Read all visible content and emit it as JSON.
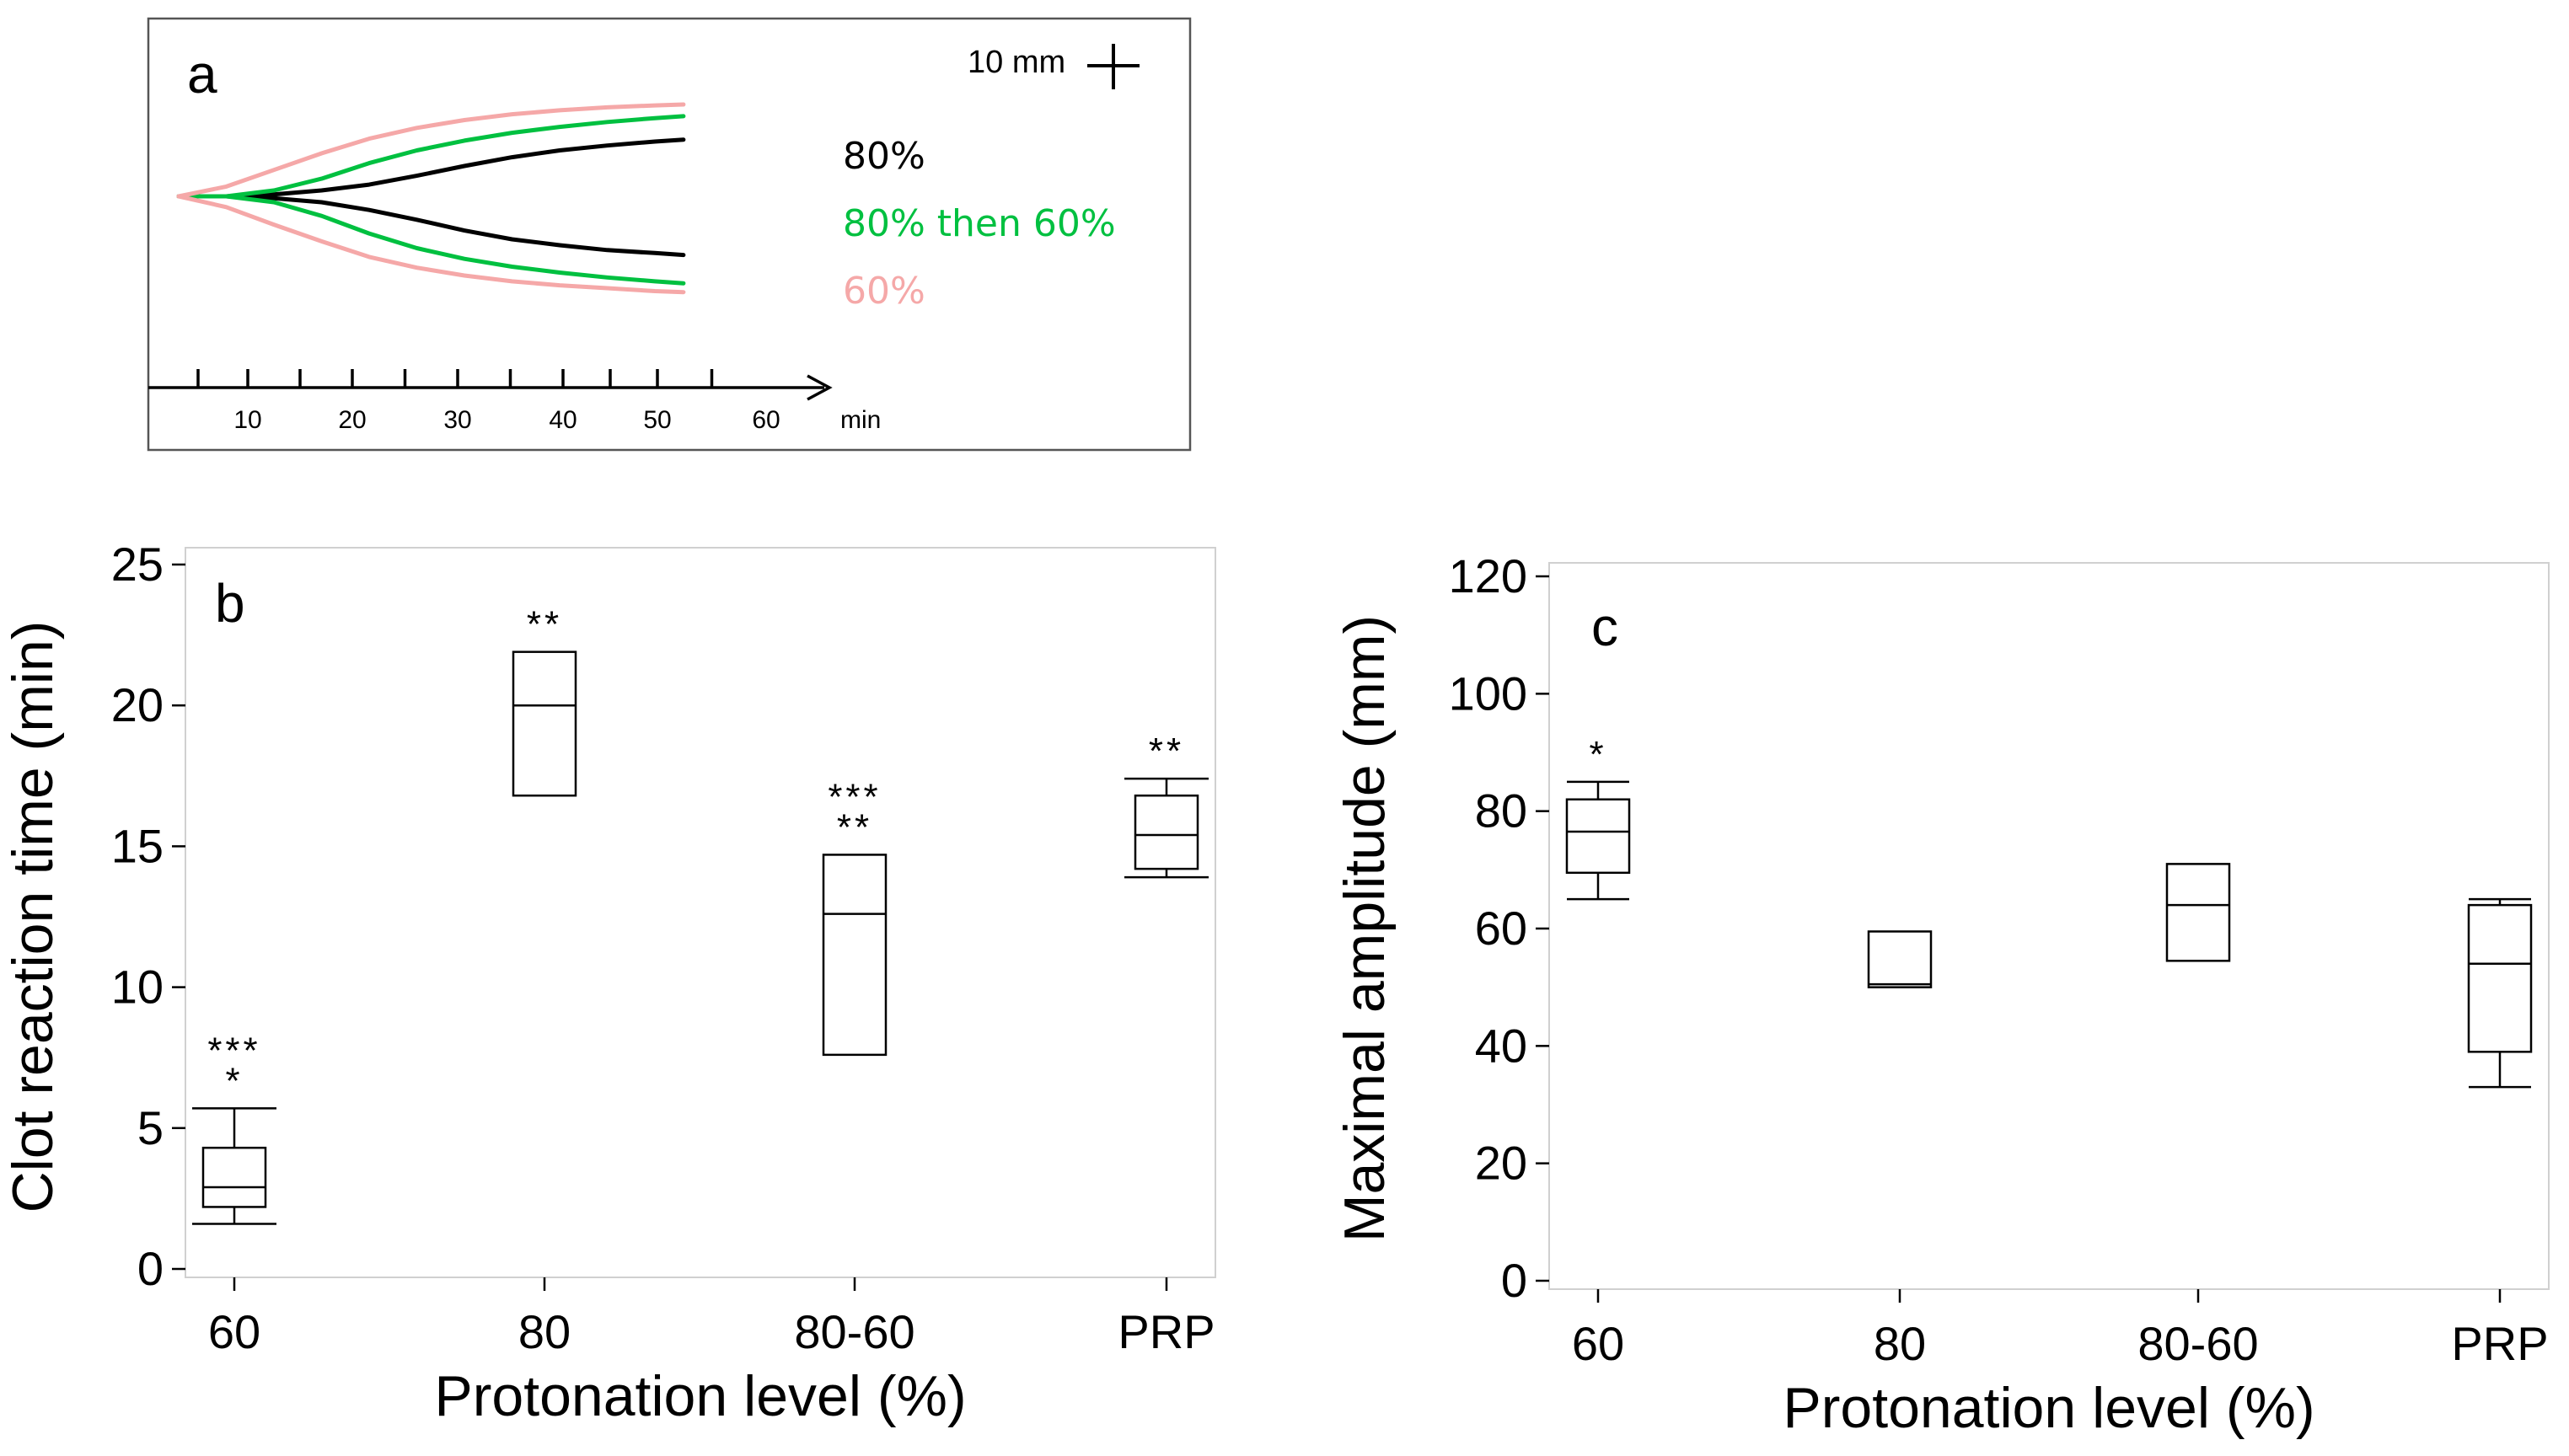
{
  "chart_data": [
    {
      "panel": "a",
      "type": "line",
      "title": "",
      "xlabel": "min",
      "x_ticks": [
        10,
        20,
        30,
        40,
        50,
        60
      ],
      "xlim": [
        0,
        65
      ],
      "scale_label": "10 mm",
      "series": [
        {
          "name": "80%",
          "color": "#000000",
          "x": [
            0,
            5,
            10,
            15,
            20,
            25,
            30,
            35,
            40,
            45,
            50,
            53
          ],
          "upper": [
            0,
            0,
            0.2,
            0.6,
            1.2,
            2.1,
            3.1,
            4.0,
            4.7,
            5.2,
            5.6,
            5.8
          ],
          "lower": [
            0,
            0,
            -0.2,
            -0.6,
            -1.4,
            -2.4,
            -3.5,
            -4.4,
            -5.0,
            -5.5,
            -5.8,
            -6.0
          ]
        },
        {
          "name": "80% then 60%",
          "color": "#00c040",
          "x": [
            0,
            5,
            10,
            15,
            20,
            25,
            30,
            35,
            40,
            45,
            50,
            53
          ],
          "upper": [
            0,
            0,
            0.6,
            1.8,
            3.4,
            4.7,
            5.7,
            6.5,
            7.1,
            7.6,
            8.0,
            8.2
          ],
          "lower": [
            0,
            0,
            -0.6,
            -2.0,
            -3.8,
            -5.3,
            -6.4,
            -7.2,
            -7.8,
            -8.3,
            -8.7,
            -8.9
          ]
        },
        {
          "name": "60%",
          "color": "#f5a8a8",
          "x": [
            0,
            5,
            10,
            15,
            20,
            25,
            30,
            35,
            40,
            45,
            50,
            53
          ],
          "upper": [
            0,
            1.0,
            2.7,
            4.4,
            5.9,
            7.0,
            7.8,
            8.4,
            8.8,
            9.1,
            9.3,
            9.4
          ],
          "lower": [
            0,
            -1.1,
            -2.9,
            -4.6,
            -6.2,
            -7.3,
            -8.1,
            -8.7,
            -9.1,
            -9.4,
            -9.7,
            -9.8
          ]
        }
      ],
      "legend": [
        "80%",
        "80% then 60%",
        "60%"
      ]
    },
    {
      "panel": "b",
      "type": "box",
      "title": "",
      "xlabel": "Protonation level (%)",
      "ylabel": "Clot reaction time (min)",
      "ylim": [
        0,
        25
      ],
      "y_ticks": [
        0,
        5,
        10,
        15,
        20,
        25
      ],
      "categories": [
        "60",
        "80",
        "80-60",
        "PRP"
      ],
      "boxes": [
        {
          "whisker_low": 1.6,
          "q1": 2.2,
          "median": 2.9,
          "q3": 4.3,
          "whisker_high": 5.7
        },
        {
          "whisker_low": null,
          "q1": 16.8,
          "median": 20.0,
          "q3": 21.9,
          "whisker_high": null
        },
        {
          "whisker_low": null,
          "q1": 7.6,
          "median": 12.6,
          "q3": 14.7,
          "whisker_high": null
        },
        {
          "whisker_low": 13.9,
          "q1": 14.2,
          "median": 15.4,
          "q3": 16.8,
          "whisker_high": 17.4
        }
      ],
      "annotations": [
        {
          "category": "60",
          "lines": [
            "***",
            "*"
          ]
        },
        {
          "category": "80",
          "lines": [
            "**"
          ]
        },
        {
          "category": "80-60",
          "lines": [
            "***",
            "**"
          ]
        },
        {
          "category": "PRP",
          "lines": [
            "**"
          ]
        }
      ]
    },
    {
      "panel": "c",
      "type": "box",
      "title": "",
      "xlabel": "Protonation level (%)",
      "ylabel": "Maximal amplitude (mm)",
      "ylim": [
        0,
        120
      ],
      "y_ticks": [
        0,
        20,
        40,
        60,
        80,
        100,
        120
      ],
      "categories": [
        "60",
        "80",
        "80-60",
        "PRP"
      ],
      "boxes": [
        {
          "whisker_low": 65,
          "q1": 69.5,
          "median": 76.5,
          "q3": 82,
          "whisker_high": 85
        },
        {
          "whisker_low": null,
          "q1": 50,
          "median": 50.5,
          "q3": 59.5,
          "whisker_high": null
        },
        {
          "whisker_low": null,
          "q1": 54.5,
          "median": 64,
          "q3": 71,
          "whisker_high": null
        },
        {
          "whisker_low": 33,
          "q1": 39,
          "median": 54,
          "q3": 64,
          "whisker_high": 65
        }
      ],
      "annotations": [
        {
          "category": "60",
          "lines": [
            "*"
          ]
        }
      ]
    }
  ]
}
